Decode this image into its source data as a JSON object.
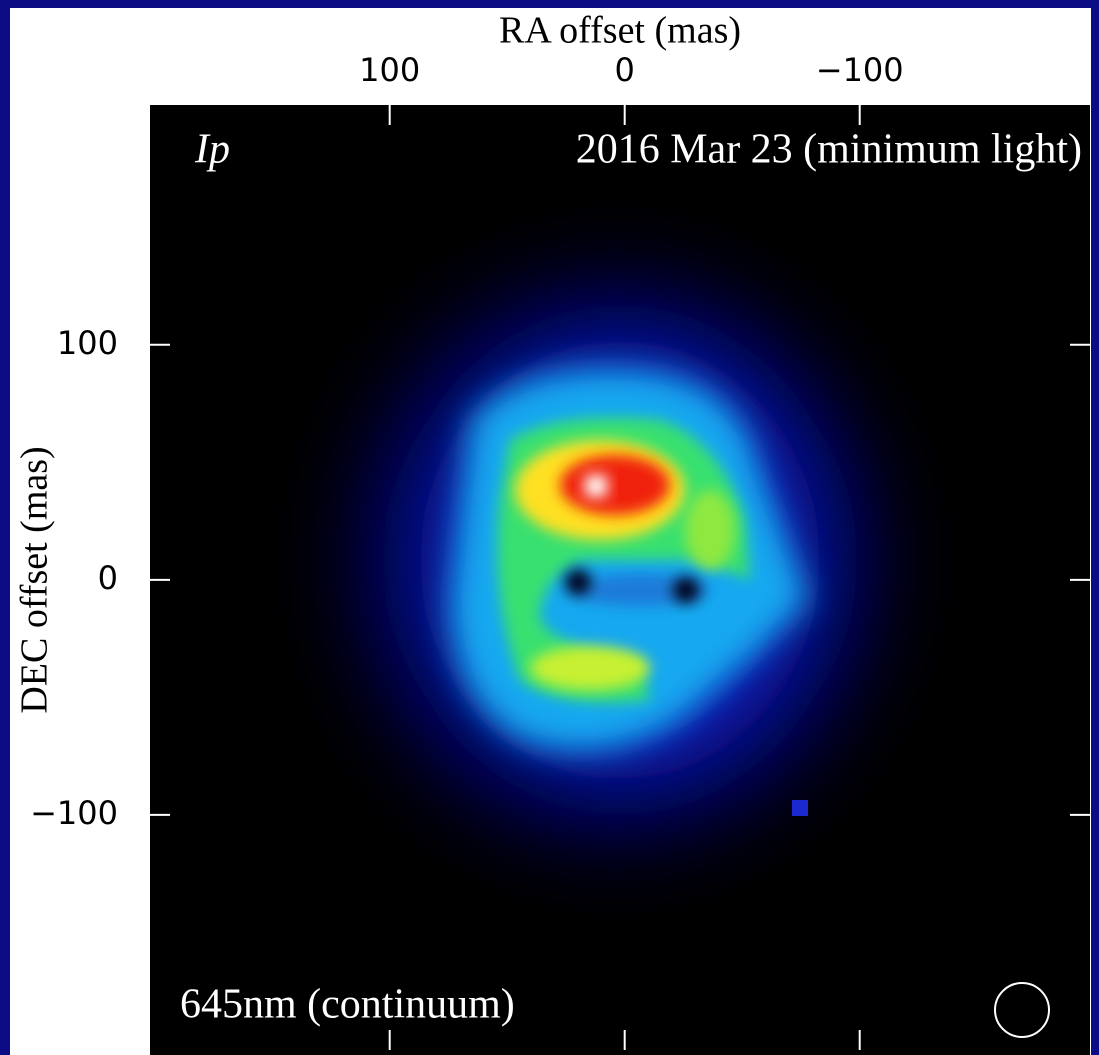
{
  "chart_data": {
    "type": "image",
    "x_label": "RA offset (mas)",
    "y_label": "DEC offset (mas)",
    "annotations": [
      "Ip",
      "2016 Mar 23 (minimum light)",
      "645nm (continuum)"
    ],
    "xlim": [
      202,
      -198
    ],
    "ylim": [
      -200,
      202
    ],
    "xticks": [
      100,
      0,
      {
        "value": -100,
        "label": "−100"
      }
    ],
    "yticks": [
      {
        "value": -100,
        "label": "−100"
      },
      0,
      100
    ]
  }
}
